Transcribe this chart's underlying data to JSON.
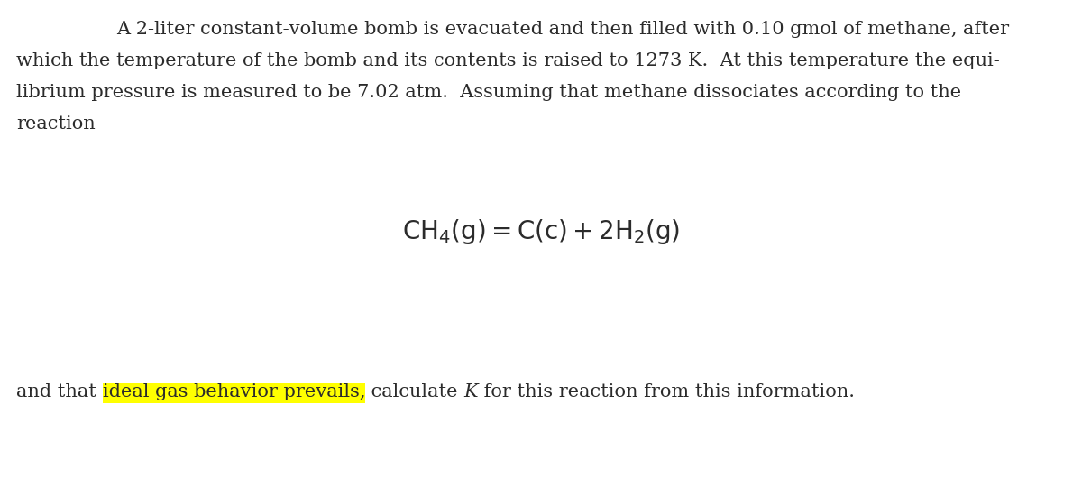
{
  "background_color": "#ffffff",
  "paragraph_text_line1": "A 2-liter constant-volume bomb is evacuated and then filled with 0.10 gmol of methane, after",
  "paragraph_text_line2": "which the temperature of the bomb and its contents is raised to 1273 K.  At this temperature the equi-",
  "paragraph_text_line3": "librium pressure is measured to be 7.02 atm.  Assuming that methane dissociates according to the",
  "paragraph_text_line4": "reaction",
  "equation": "$\\mathrm{CH_4(g) = C(c) + 2H_2(g)}$",
  "last_line_prefix": "and that ",
  "highlighted_text": "ideal gas behavior prevails,",
  "last_line_suffix": " calculate ϰ for this reaction from this information.",
  "last_line_suffix_display": " calculate K for this reaction from this information.",
  "highlight_color": "#ffff00",
  "text_color": "#2b2b2b",
  "font_size_body": 15.0,
  "font_size_equation": 20,
  "font_family": "serif"
}
